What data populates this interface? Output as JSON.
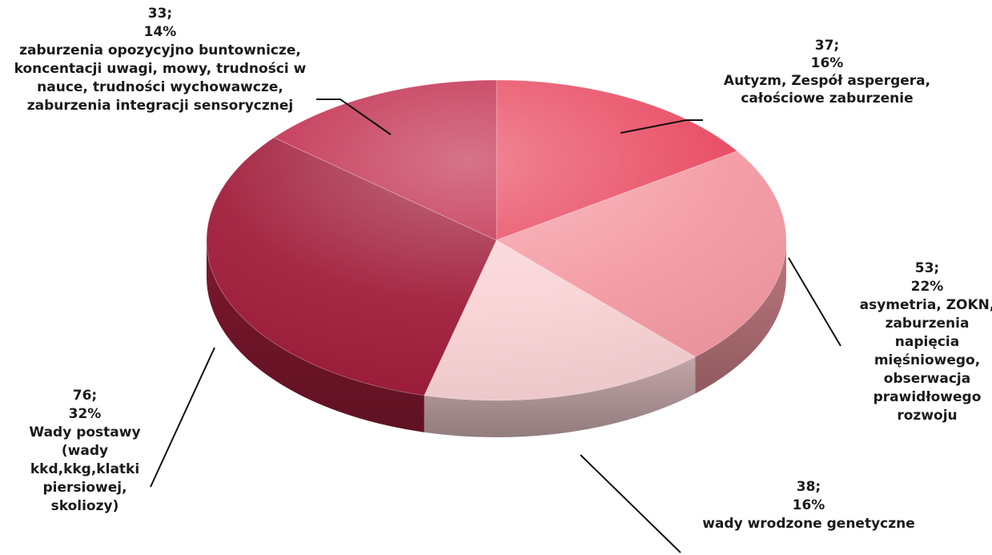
{
  "chart_data": {
    "type": "pie",
    "title": "",
    "slices": [
      {
        "value": 37,
        "percent": "16%",
        "label_lines": [
          "Autyzm, Zespół aspergera,",
          "całościowe zaburzenie"
        ],
        "color": "#e8475f"
      },
      {
        "value": 53,
        "percent": "22%",
        "label_lines": [
          "asymetria, ZOKN,",
          "zaburzenia",
          "napięcia",
          "mięśniowego,",
          "obserwacja",
          "prawidłowego",
          "rozwoju"
        ],
        "color": "#f49aa3"
      },
      {
        "value": 38,
        "percent": "16%",
        "label_lines": [
          "wady wrodzone genetyczne"
        ],
        "color": "#f9d3d6"
      },
      {
        "value": 76,
        "percent": "32%",
        "label_lines": [
          "Wady postawy",
          "(wady",
          "kkd,kkg,klatki",
          "piersiowej,",
          "skoliozy)"
        ],
        "color": "#a11d3b"
      },
      {
        "value": 33,
        "percent": "14%",
        "label_lines": [
          "zaburzenia opozycyjno buntownicze,",
          "koncentacji uwagi, mowy, trudności w",
          "nauce, trudności wychowawcze,",
          "zaburzenia integracji sensorycznej"
        ],
        "color": "#c0294b"
      }
    ],
    "legend": "none",
    "data_labels": "value; percent + category name"
  }
}
